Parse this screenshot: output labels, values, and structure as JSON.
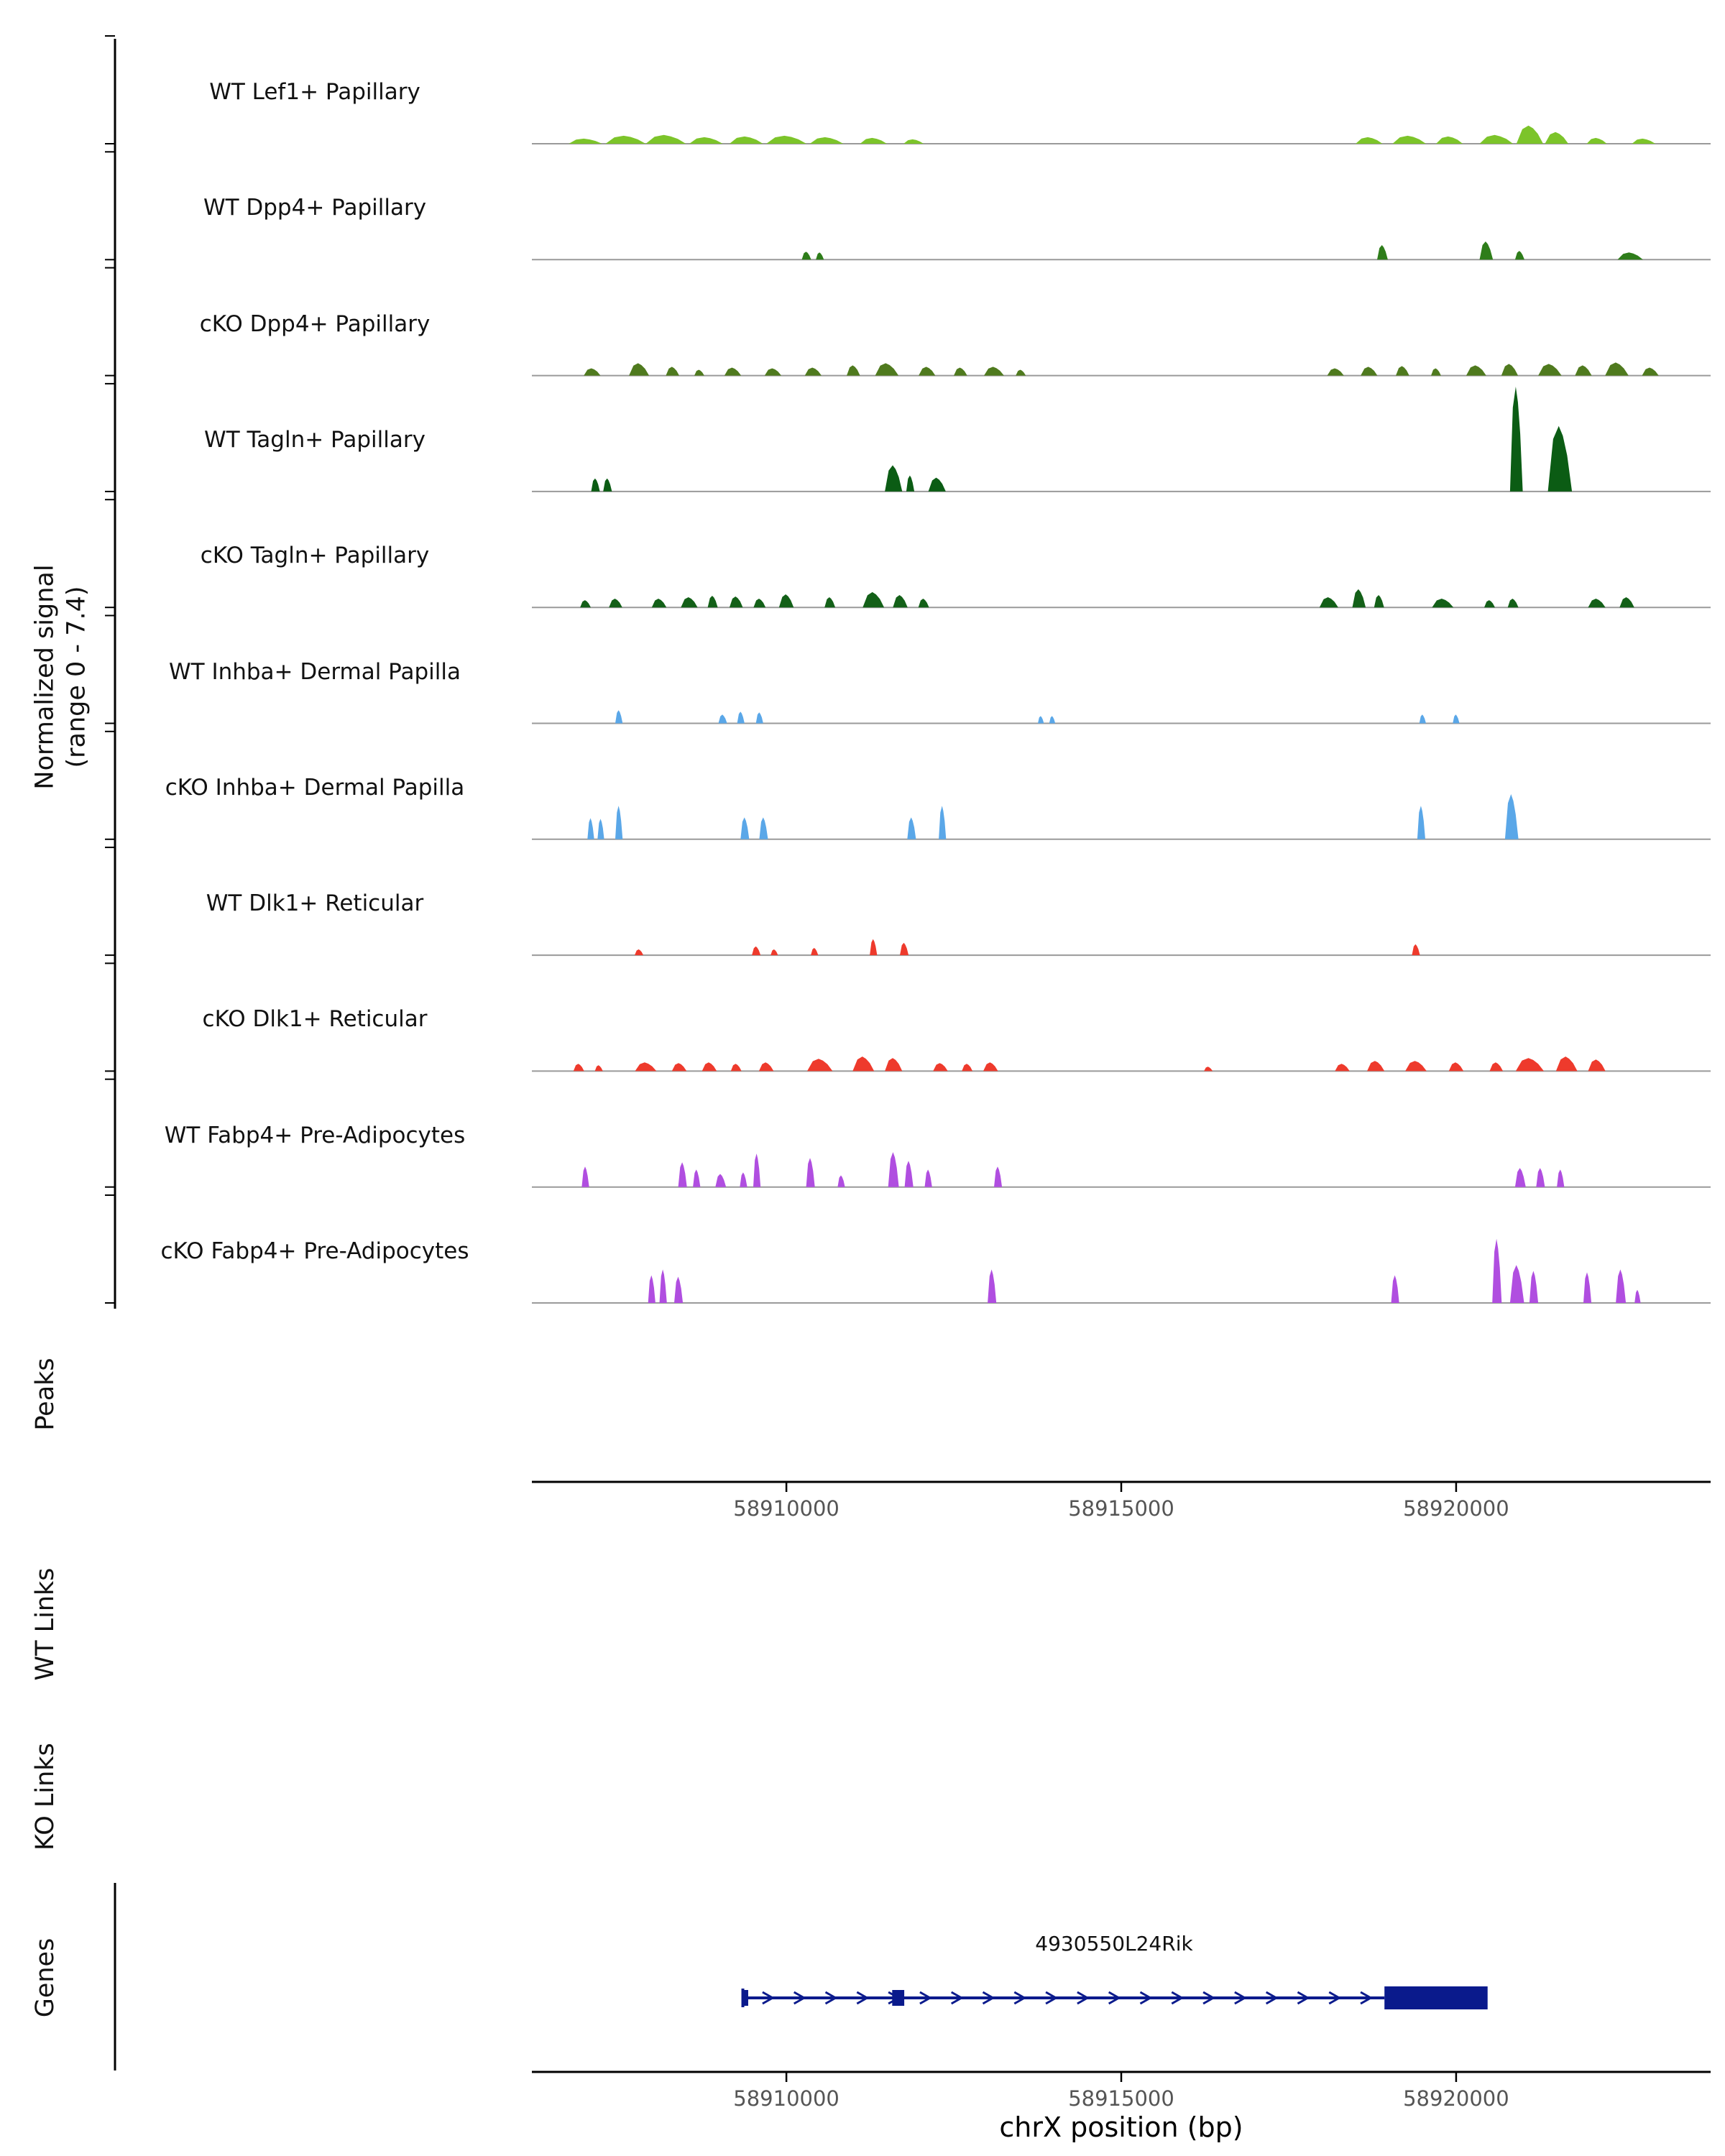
{
  "y_axis": {
    "title_line1": "Normalized signal",
    "title_line2": "(range 0 - 7.4)"
  },
  "sections": {
    "peaks": "Peaks",
    "wt_links": "WT Links",
    "ko_links": "KO Links",
    "genes": "Genes"
  },
  "x_axis": {
    "label": "chrX position (bp)",
    "chrom": "chrX",
    "start": 58906200,
    "end": 58923800,
    "ticks": [
      58910000,
      58915000,
      58920000
    ]
  },
  "chart_data": {
    "type": "area",
    "title": "",
    "ylabel": "Normalized signal (range 0 - 7.4)",
    "xlabel": "chrX position (bp)",
    "ylim": [
      0,
      7.4
    ],
    "xlim": [
      58906200,
      58923800
    ],
    "grid": false,
    "baseline_color": "#9a9a9a",
    "tracks": [
      {
        "name": "WT Lef1+ Papillary",
        "color": "#7CC42A",
        "peaks": [
          [
            58907000,
            500,
            0.35
          ],
          [
            58907600,
            600,
            0.55
          ],
          [
            58908200,
            600,
            0.6
          ],
          [
            58908800,
            500,
            0.45
          ],
          [
            58909400,
            500,
            0.5
          ],
          [
            58910000,
            600,
            0.55
          ],
          [
            58910600,
            500,
            0.45
          ],
          [
            58911300,
            400,
            0.4
          ],
          [
            58911900,
            300,
            0.3
          ],
          [
            58918700,
            400,
            0.45
          ],
          [
            58919300,
            500,
            0.55
          ],
          [
            58919900,
            400,
            0.5
          ],
          [
            58920600,
            500,
            0.6
          ],
          [
            58921100,
            400,
            1.25
          ],
          [
            58921500,
            350,
            0.8
          ],
          [
            58922100,
            300,
            0.4
          ],
          [
            58922800,
            350,
            0.35
          ]
        ]
      },
      {
        "name": "WT Dpp4+ Papillary",
        "color": "#2E7D1A",
        "peaks": [
          [
            58910300,
            140,
            0.55
          ],
          [
            58910500,
            120,
            0.5
          ],
          [
            58918900,
            160,
            1.0
          ],
          [
            58920450,
            200,
            1.25
          ],
          [
            58920950,
            140,
            0.6
          ],
          [
            58922600,
            380,
            0.5
          ]
        ]
      },
      {
        "name": "cKO Dpp4+ Papillary",
        "color": "#4F7A1E",
        "peaks": [
          [
            58907100,
            250,
            0.5
          ],
          [
            58907800,
            300,
            0.85
          ],
          [
            58908300,
            200,
            0.6
          ],
          [
            58908700,
            150,
            0.4
          ],
          [
            58909200,
            250,
            0.55
          ],
          [
            58909800,
            250,
            0.5
          ],
          [
            58910400,
            250,
            0.55
          ],
          [
            58911000,
            200,
            0.7
          ],
          [
            58911500,
            350,
            0.85
          ],
          [
            58912100,
            250,
            0.6
          ],
          [
            58912600,
            200,
            0.55
          ],
          [
            58913100,
            300,
            0.6
          ],
          [
            58913500,
            150,
            0.4
          ],
          [
            58918200,
            250,
            0.5
          ],
          [
            58918700,
            250,
            0.6
          ],
          [
            58919200,
            200,
            0.65
          ],
          [
            58919700,
            150,
            0.5
          ],
          [
            58920300,
            300,
            0.7
          ],
          [
            58920800,
            250,
            0.8
          ],
          [
            58921400,
            350,
            0.8
          ],
          [
            58921900,
            250,
            0.7
          ],
          [
            58922400,
            350,
            0.9
          ],
          [
            58922900,
            250,
            0.55
          ]
        ]
      },
      {
        "name": "WT Tagln+ Papillary",
        "color": "#0B5C14",
        "peaks": [
          [
            58907150,
            130,
            0.9
          ],
          [
            58907330,
            130,
            0.9
          ],
          [
            58911600,
            260,
            1.8
          ],
          [
            58911850,
            120,
            1.1
          ],
          [
            58912250,
            260,
            0.95
          ],
          [
            58920900,
            190,
            7.2
          ],
          [
            58921550,
            360,
            4.5
          ]
        ]
      },
      {
        "name": "cKO Tagln+ Papillary",
        "color": "#136018",
        "peaks": [
          [
            58907000,
            160,
            0.5
          ],
          [
            58907450,
            200,
            0.6
          ],
          [
            58908100,
            220,
            0.6
          ],
          [
            58908550,
            250,
            0.7
          ],
          [
            58908900,
            150,
            0.8
          ],
          [
            58909250,
            200,
            0.75
          ],
          [
            58909600,
            180,
            0.6
          ],
          [
            58910000,
            220,
            0.9
          ],
          [
            58910650,
            160,
            0.7
          ],
          [
            58911300,
            320,
            1.05
          ],
          [
            58911700,
            220,
            0.85
          ],
          [
            58912050,
            160,
            0.6
          ],
          [
            58918100,
            280,
            0.7
          ],
          [
            58918550,
            200,
            1.25
          ],
          [
            58918850,
            150,
            0.85
          ],
          [
            58919800,
            320,
            0.6
          ],
          [
            58920500,
            160,
            0.5
          ],
          [
            58920850,
            160,
            0.6
          ],
          [
            58922100,
            260,
            0.6
          ],
          [
            58922550,
            220,
            0.7
          ]
        ]
      },
      {
        "name": "WT Inhba+ Dermal Papilla",
        "color": "#5AA7E8",
        "peaks": [
          [
            58907500,
            110,
            0.9
          ],
          [
            58909050,
            130,
            0.6
          ],
          [
            58909320,
            110,
            0.8
          ],
          [
            58909600,
            110,
            0.75
          ],
          [
            58913800,
            90,
            0.5
          ],
          [
            58913970,
            90,
            0.5
          ],
          [
            58919500,
            100,
            0.6
          ],
          [
            58920000,
            100,
            0.6
          ]
        ]
      },
      {
        "name": "cKO Inhba+ Dermal Papilla",
        "color": "#5AA7E8",
        "peaks": [
          [
            58907080,
            100,
            1.45
          ],
          [
            58907230,
            100,
            1.4
          ],
          [
            58907500,
            110,
            2.3
          ],
          [
            58909380,
            130,
            1.5
          ],
          [
            58909660,
            130,
            1.5
          ],
          [
            58911870,
            130,
            1.5
          ],
          [
            58912330,
            110,
            2.3
          ],
          [
            58919480,
            120,
            2.3
          ],
          [
            58920830,
            200,
            3.1
          ]
        ]
      },
      {
        "name": "WT Dlk1+ Reticular",
        "color": "#EE3A2C",
        "peaks": [
          [
            58907800,
            130,
            0.4
          ],
          [
            58909550,
            130,
            0.6
          ],
          [
            58909820,
            110,
            0.4
          ],
          [
            58910420,
            110,
            0.5
          ],
          [
            58911300,
            110,
            1.1
          ],
          [
            58911760,
            130,
            0.85
          ],
          [
            58919400,
            120,
            0.75
          ]
        ]
      },
      {
        "name": "cKO Dlk1+ Reticular",
        "color": "#EE3A2C",
        "peaks": [
          [
            58906900,
            160,
            0.5
          ],
          [
            58907200,
            120,
            0.4
          ],
          [
            58907900,
            320,
            0.6
          ],
          [
            58908400,
            220,
            0.55
          ],
          [
            58908850,
            220,
            0.6
          ],
          [
            58909250,
            160,
            0.5
          ],
          [
            58909700,
            220,
            0.6
          ],
          [
            58910500,
            380,
            0.85
          ],
          [
            58911150,
            320,
            1.0
          ],
          [
            58911600,
            260,
            0.9
          ],
          [
            58912300,
            220,
            0.55
          ],
          [
            58912700,
            160,
            0.5
          ],
          [
            58913050,
            220,
            0.6
          ],
          [
            58916300,
            130,
            0.3
          ],
          [
            58918300,
            220,
            0.5
          ],
          [
            58918800,
            260,
            0.7
          ],
          [
            58919400,
            320,
            0.7
          ],
          [
            58920000,
            220,
            0.6
          ],
          [
            58920600,
            200,
            0.6
          ],
          [
            58921100,
            420,
            0.9
          ],
          [
            58921650,
            320,
            1.0
          ],
          [
            58922100,
            260,
            0.8
          ]
        ]
      },
      {
        "name": "WT Fabp4+ Pre-Adipocytes",
        "color": "#B04EE0",
        "peaks": [
          [
            58907000,
            110,
            1.4
          ],
          [
            58908450,
            130,
            1.7
          ],
          [
            58908660,
            110,
            1.2
          ],
          [
            58909020,
            160,
            0.9
          ],
          [
            58909360,
            110,
            1.0
          ],
          [
            58909560,
            110,
            2.3
          ],
          [
            58910360,
            130,
            2.0
          ],
          [
            58910820,
            110,
            0.8
          ],
          [
            58911600,
            160,
            2.4
          ],
          [
            58911830,
            130,
            1.8
          ],
          [
            58912120,
            110,
            1.2
          ],
          [
            58913160,
            120,
            1.4
          ],
          [
            58920960,
            160,
            1.3
          ],
          [
            58921260,
            130,
            1.3
          ],
          [
            58921560,
            110,
            1.2
          ]
        ]
      },
      {
        "name": "cKO Fabp4+ Pre-Adipocytes",
        "color": "#B04EE0",
        "peaks": [
          [
            58907990,
            110,
            1.9
          ],
          [
            58908160,
            110,
            2.3
          ],
          [
            58908390,
            130,
            1.8
          ],
          [
            58913070,
            130,
            2.3
          ],
          [
            58919090,
            120,
            1.9
          ],
          [
            58920610,
            140,
            4.4
          ],
          [
            58920910,
            210,
            2.6
          ],
          [
            58921160,
            130,
            2.2
          ],
          [
            58921960,
            120,
            2.1
          ],
          [
            58922460,
            150,
            2.3
          ],
          [
            58922710,
            90,
            0.9
          ]
        ]
      }
    ],
    "gene": {
      "name": "4930550L24Rik",
      "chrom": "chrX",
      "start": 58909350,
      "end": 58920470,
      "strand": "+",
      "line_end": 58918930,
      "exons_small": [
        [
          58909350,
          58909430
        ],
        [
          58911580,
          58911760
        ]
      ],
      "exon_thick": [
        58918930,
        58920470
      ],
      "color": "#0A1A8C"
    }
  }
}
